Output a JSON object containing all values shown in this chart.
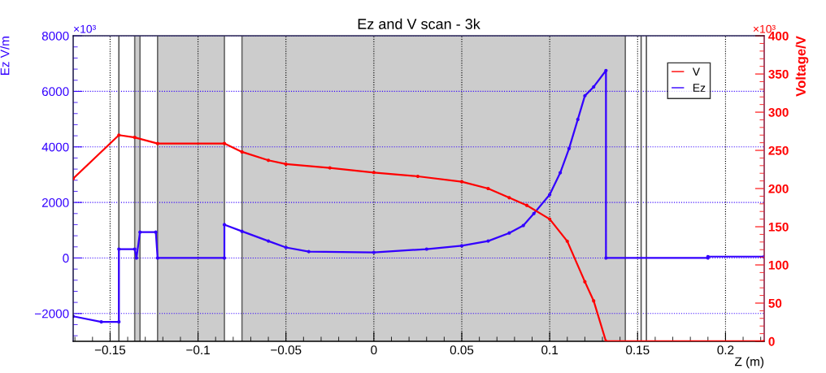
{
  "chart_data": {
    "type": "line",
    "title": "Ez and V scan - 3k",
    "xlabel": "Z (m)",
    "ylabel": "Ez V/m",
    "y2label": "Voltage/V",
    "annotations": [
      "×10³",
      "×10³"
    ],
    "xlim": [
      -0.171,
      0.222
    ],
    "xticks": [
      -0.15,
      -0.1,
      -0.05,
      0,
      0.05,
      0.1,
      0.15,
      0.2
    ],
    "ylim": [
      -3000,
      8000
    ],
    "yticks": [
      -2000,
      0,
      2000,
      4000,
      6000,
      8000
    ],
    "y2lim": [
      0,
      400
    ],
    "y2ticks": [
      0,
      50,
      100,
      150,
      200,
      250,
      300,
      350,
      400
    ],
    "grid": true,
    "legend": "top right",
    "marker": "circle",
    "line_style": "solid",
    "bands": [
      {
        "axis": "x",
        "from": -0.136,
        "to": -0.133,
        "color": "#cccccc"
      },
      {
        "axis": "x",
        "from": -0.123,
        "to": -0.085,
        "color": "#cccccc"
      },
      {
        "axis": "x",
        "from": -0.075,
        "to": 0.143,
        "color": "#cccccc"
      }
    ],
    "ref_lines": [
      {
        "axis": "x",
        "value": -0.145,
        "color": "#555555"
      },
      {
        "axis": "x",
        "value": 0.152,
        "color": "#555555"
      },
      {
        "axis": "x",
        "value": 0.155,
        "color": "#555555"
      }
    ],
    "series": [
      {
        "name": "V",
        "color": "#ff0000",
        "axis": "y2",
        "x": [
          -0.171,
          -0.145,
          -0.136,
          -0.123,
          -0.085,
          -0.075,
          -0.06,
          -0.05,
          -0.025,
          0,
          0.025,
          0.05,
          0.065,
          0.077,
          0.087,
          0.1,
          0.11,
          0.12,
          0.125,
          0.132,
          0.222
        ],
        "values": [
          213,
          270,
          267,
          259,
          259,
          248,
          237,
          232,
          227,
          221,
          216,
          209,
          200,
          188,
          178,
          160,
          131,
          78,
          53,
          0,
          0
        ]
      },
      {
        "name": "Ez",
        "color": "#3300ff",
        "x": [
          -0.171,
          -0.155,
          -0.145,
          -0.145,
          -0.136,
          -0.135,
          -0.133,
          -0.124,
          -0.123,
          -0.085,
          -0.085,
          -0.075,
          -0.06,
          -0.05,
          -0.037,
          0,
          0.03,
          0.05,
          0.065,
          0.077,
          0.085,
          0.091,
          0.1,
          0.106,
          0.111,
          0.116,
          0.12,
          0.125,
          0.132,
          0.132,
          0.19,
          0.19,
          0.222
        ],
        "values": [
          -2100,
          -2300,
          -2300,
          320,
          320,
          0,
          930,
          930,
          0,
          0,
          1200,
          960,
          610,
          380,
          230,
          200,
          320,
          440,
          610,
          900,
          1170,
          1600,
          2280,
          3070,
          3940,
          4990,
          5840,
          6160,
          6750,
          0,
          0,
          50,
          50
        ]
      }
    ]
  }
}
